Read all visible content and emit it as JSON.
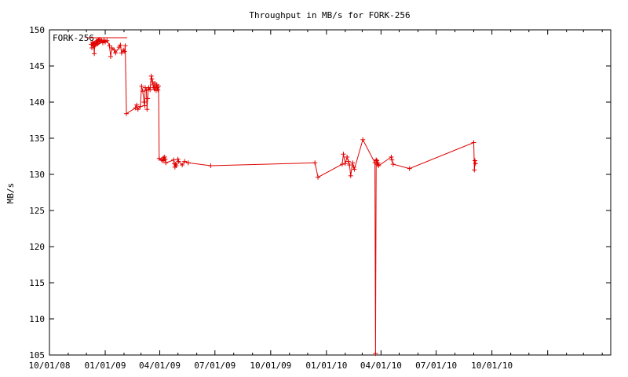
{
  "chart_data": {
    "type": "line",
    "title": "Throughput in MB/s for FORK-256",
    "xlabel": "",
    "ylabel": "MB/s",
    "legend": {
      "label": "FORK-256",
      "placement": "top-left"
    },
    "colors": {
      "series": "#e00000",
      "axis": "#000000",
      "background": "#ffffff"
    },
    "grid": false,
    "x_axis": {
      "min": "2008-10-01",
      "max": "2011-04-15",
      "ticks": [
        {
          "date": "2008-10-01",
          "label": "10/01/08"
        },
        {
          "date": "2009-01-01",
          "label": "01/01/09"
        },
        {
          "date": "2009-04-01",
          "label": "04/01/09"
        },
        {
          "date": "2009-07-01",
          "label": "07/01/09"
        },
        {
          "date": "2009-10-01",
          "label": "10/01/09"
        },
        {
          "date": "2010-01-01",
          "label": "01/01/10"
        },
        {
          "date": "2010-04-01",
          "label": "04/01/10"
        },
        {
          "date": "2010-07-01",
          "label": "07/01/10"
        },
        {
          "date": "2010-10-01",
          "label": "10/01/10"
        },
        {
          "date": "2011-01-01",
          "label": ""
        }
      ],
      "minor_ticks": [
        "2008-11-01",
        "2008-12-01",
        "2009-02-01",
        "2009-03-01",
        "2009-05-01",
        "2009-06-01",
        "2009-08-01",
        "2009-09-01",
        "2009-11-01",
        "2009-12-01",
        "2010-02-01",
        "2010-03-01",
        "2010-05-01",
        "2010-06-01",
        "2010-08-01",
        "2010-09-01",
        "2010-11-01",
        "2010-12-01",
        "2011-02-01",
        "2011-03-01",
        "2011-04-01"
      ]
    },
    "y_axis": {
      "min": 105,
      "max": 150,
      "ticks": [
        {
          "value": 105,
          "label": "105"
        },
        {
          "value": 110,
          "label": "110"
        },
        {
          "value": 115,
          "label": "115"
        },
        {
          "value": 120,
          "label": "120"
        },
        {
          "value": 125,
          "label": "125"
        },
        {
          "value": 130,
          "label": "130"
        },
        {
          "value": 135,
          "label": "135"
        },
        {
          "value": 140,
          "label": "140"
        },
        {
          "value": 145,
          "label": "145"
        },
        {
          "value": 150,
          "label": "150"
        }
      ]
    },
    "series": [
      {
        "name": "FORK-256",
        "points": [
          [
            "2008-12-09",
            148.0
          ],
          [
            "2008-12-10",
            147.5
          ],
          [
            "2008-12-11",
            148.3
          ],
          [
            "2008-12-12",
            147.8
          ],
          [
            "2008-12-13",
            148.1
          ],
          [
            "2008-12-14",
            146.7
          ],
          [
            "2008-12-15",
            148.2
          ],
          [
            "2008-12-16",
            147.9
          ],
          [
            "2008-12-17",
            148.4
          ],
          [
            "2008-12-18",
            148.0
          ],
          [
            "2008-12-19",
            148.5
          ],
          [
            "2008-12-20",
            148.1
          ],
          [
            "2008-12-21",
            148.6
          ],
          [
            "2008-12-22",
            148.3
          ],
          [
            "2008-12-23",
            148.7
          ],
          [
            "2008-12-24",
            148.4
          ],
          [
            "2008-12-26",
            148.5
          ],
          [
            "2008-12-28",
            148.2
          ],
          [
            "2008-12-30",
            148.6
          ],
          [
            "2009-01-01",
            148.3
          ],
          [
            "2009-01-04",
            148.5
          ],
          [
            "2009-01-08",
            147.8
          ],
          [
            "2009-01-10",
            146.3
          ],
          [
            "2009-01-12",
            147.5
          ],
          [
            "2009-01-16",
            147.2
          ],
          [
            "2009-01-18",
            146.8
          ],
          [
            "2009-01-24",
            147.6
          ],
          [
            "2009-01-26",
            147.9
          ],
          [
            "2009-01-28",
            146.8
          ],
          [
            "2009-01-31",
            147.2
          ],
          [
            "2009-02-02",
            147.0
          ],
          [
            "2009-02-03",
            147.8
          ],
          [
            "2009-02-05",
            138.4
          ],
          [
            "2009-02-20",
            139.2
          ],
          [
            "2009-02-22",
            139.6
          ],
          [
            "2009-02-24",
            139.0
          ],
          [
            "2009-02-28",
            139.4
          ],
          [
            "2009-03-02",
            142.2
          ],
          [
            "2009-03-04",
            141.5
          ],
          [
            "2009-03-06",
            140.0
          ],
          [
            "2009-03-07",
            139.5
          ],
          [
            "2009-03-08",
            142.0
          ],
          [
            "2009-03-10",
            141.6
          ],
          [
            "2009-03-11",
            139.0
          ],
          [
            "2009-03-12",
            140.5
          ],
          [
            "2009-03-13",
            141.8
          ],
          [
            "2009-03-14",
            142.0
          ],
          [
            "2009-03-16",
            141.7
          ],
          [
            "2009-03-18",
            143.6
          ],
          [
            "2009-03-19",
            143.2
          ],
          [
            "2009-03-20",
            142.8
          ],
          [
            "2009-03-21",
            142.4
          ],
          [
            "2009-03-22",
            142.0
          ],
          [
            "2009-03-23",
            141.8
          ],
          [
            "2009-03-24",
            142.6
          ],
          [
            "2009-03-25",
            142.0
          ],
          [
            "2009-03-26",
            141.6
          ],
          [
            "2009-03-27",
            142.4
          ],
          [
            "2009-03-28",
            142.0
          ],
          [
            "2009-03-29",
            141.7
          ],
          [
            "2009-03-30",
            142.2
          ],
          [
            "2009-03-31",
            132.2
          ],
          [
            "2009-04-04",
            132.0
          ],
          [
            "2009-04-06",
            131.9
          ],
          [
            "2009-04-07",
            132.3
          ],
          [
            "2009-04-08",
            132.0
          ],
          [
            "2009-04-09",
            132.4
          ],
          [
            "2009-04-10",
            132.1
          ],
          [
            "2009-04-11",
            131.6
          ],
          [
            "2009-04-24",
            132.0
          ],
          [
            "2009-04-25",
            131.5
          ],
          [
            "2009-04-26",
            131.0
          ],
          [
            "2009-04-27",
            131.4
          ],
          [
            "2009-04-28",
            131.2
          ],
          [
            "2009-05-01",
            132.1
          ],
          [
            "2009-05-02",
            131.8
          ],
          [
            "2009-05-08",
            131.3
          ],
          [
            "2009-05-12",
            131.8
          ],
          [
            "2009-05-18",
            131.6
          ],
          [
            "2009-06-24",
            131.2
          ],
          [
            "2009-12-13",
            131.6
          ],
          [
            "2009-12-18",
            129.6
          ],
          [
            "2010-01-27",
            131.4
          ],
          [
            "2010-01-29",
            132.8
          ],
          [
            "2010-02-01",
            131.5
          ],
          [
            "2010-02-04",
            132.4
          ],
          [
            "2010-02-06",
            131.8
          ],
          [
            "2010-02-08",
            131.3
          ],
          [
            "2010-02-10",
            129.8
          ],
          [
            "2010-02-13",
            131.6
          ],
          [
            "2010-02-15",
            131.0
          ],
          [
            "2010-02-16",
            130.7
          ],
          [
            "2010-03-02",
            134.8
          ],
          [
            "2010-03-22",
            131.6
          ],
          [
            "2010-03-23",
            105.2
          ],
          [
            "2010-03-24",
            132.0
          ],
          [
            "2010-03-25",
            131.9
          ],
          [
            "2010-03-26",
            131.4
          ],
          [
            "2010-03-27",
            131.6
          ],
          [
            "2010-03-28",
            131.2
          ],
          [
            "2010-04-18",
            132.4
          ],
          [
            "2010-04-19",
            132.0
          ],
          [
            "2010-04-21",
            131.4
          ],
          [
            "2010-05-18",
            130.8
          ],
          [
            "2010-09-01",
            134.4
          ],
          [
            "2010-09-02",
            130.6
          ],
          [
            "2010-09-03",
            131.9
          ],
          [
            "2010-09-04",
            131.5
          ]
        ]
      }
    ]
  }
}
